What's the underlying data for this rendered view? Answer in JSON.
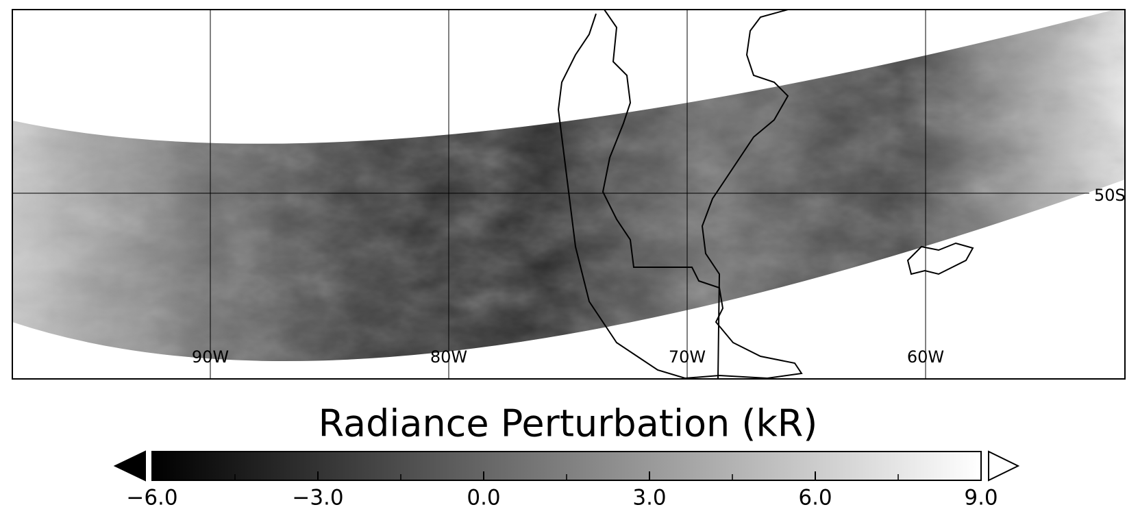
{
  "map": {
    "lon_lines": [
      {
        "value": -90,
        "label": "90W"
      },
      {
        "value": -80,
        "label": "80W"
      },
      {
        "value": -70,
        "label": "70W"
      },
      {
        "value": -60,
        "label": "60W"
      }
    ],
    "lat_label": "50S"
  },
  "colorbar": {
    "title": "Radiance Perturbation (kR)",
    "lim": [
      -6,
      9
    ],
    "ticks": [
      {
        "value": -6,
        "label": "−6.0"
      },
      {
        "value": -3,
        "label": "−3.0"
      },
      {
        "value": 0,
        "label": "0.0"
      },
      {
        "value": 3,
        "label": "3.0"
      },
      {
        "value": 6,
        "label": "6.0"
      },
      {
        "value": 9,
        "label": "9.0"
      }
    ],
    "minor_ticks": [
      -4.5,
      -1.5,
      1.5,
      4.5,
      7.5
    ]
  }
}
